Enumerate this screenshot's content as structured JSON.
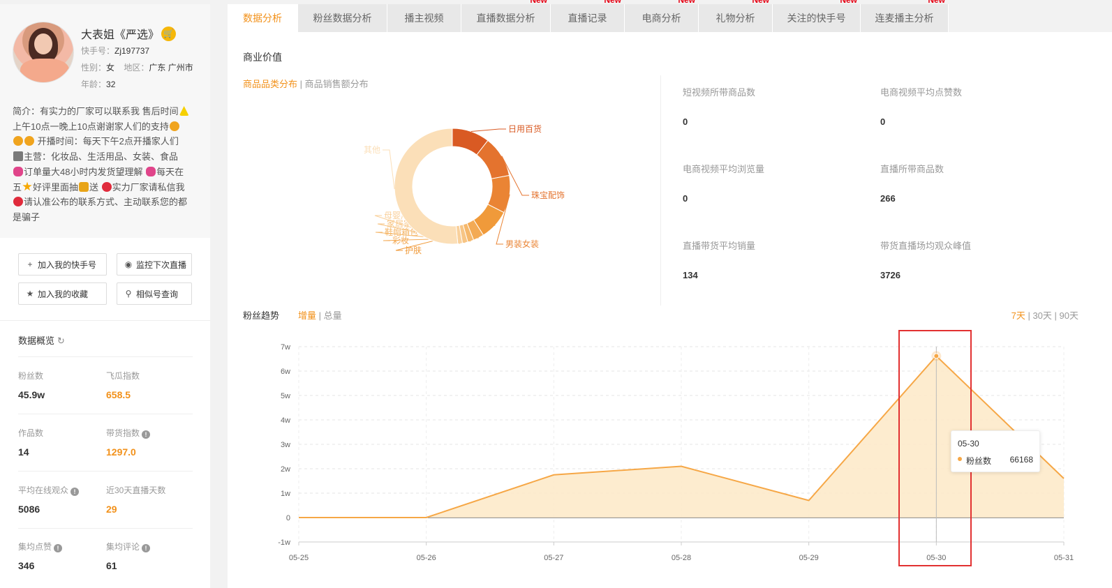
{
  "profile": {
    "name": "大表姐《严选》",
    "shop_icon": "shopping-cart-icon",
    "id_label": "快手号：",
    "id_value": "Zj197737",
    "gender_label": "性别：",
    "gender": "女",
    "region_label": "地区：",
    "region": "广东 广州市",
    "age_label": "年龄：",
    "age": "32",
    "bio_lines": [
      "简介：有实力的厂家可以联系我 售后时间",
      "上午10点一晚上10点谢谢家人们的支持",
      " 开播时间：每天下午2点开播家人们",
      "主营：化妆品、生活用品、女装、食品",
      "订单量大48小时内发货望理解 ",
      "每天在",
      "五",
      "好评里面抽",
      "送 ",
      "实力厂家请私信我",
      "请认准公布的联系方式、主动联系您的都",
      "是骗子"
    ]
  },
  "actions": {
    "add_kuaishou": "加入我的快手号",
    "monitor_live": "监控下次直播",
    "add_favorite": "加入我的收藏",
    "similar_search": "相似号查询"
  },
  "overview": {
    "title": "数据概览",
    "stats": [
      {
        "label": "粉丝数",
        "value": "45.9w",
        "highlight": false
      },
      {
        "label": "飞瓜指数",
        "value": "658.5",
        "highlight": true
      },
      {
        "label": "作品数",
        "value": "14",
        "highlight": false
      },
      {
        "label": "带货指数",
        "value": "1297.0",
        "highlight": true
      },
      {
        "label": "平均在线观众",
        "value": "5086",
        "highlight": false
      },
      {
        "label": "近30天直播天数",
        "value": "29",
        "highlight": true
      },
      {
        "label": "集均点赞",
        "value": "346",
        "highlight": false
      },
      {
        "label": "集均评论",
        "value": "61",
        "highlight": false
      }
    ]
  },
  "tabs": [
    {
      "label": "数据分析",
      "new": false
    },
    {
      "label": "粉丝数据分析",
      "new": false
    },
    {
      "label": "播主视频",
      "new": false
    },
    {
      "label": "直播数据分析",
      "new": true
    },
    {
      "label": "直播记录",
      "new": true
    },
    {
      "label": "电商分析",
      "new": true
    },
    {
      "label": "礼物分析",
      "new": true
    },
    {
      "label": "关注的快手号",
      "new": true
    },
    {
      "label": "连麦播主分析",
      "new": true
    }
  ],
  "new_badge": "New",
  "business": {
    "title": "商业价值",
    "subtab_active": "商品品类分布",
    "subtab_sep": " | ",
    "subtab_other": "商品销售额分布",
    "metrics": [
      {
        "label": "短视频所带商品数",
        "value": "0"
      },
      {
        "label": "电商视频平均点赞数",
        "value": "0"
      },
      {
        "label": "电商视频平均浏览量",
        "value": "0"
      },
      {
        "label": "直播所带商品数",
        "value": "266"
      },
      {
        "label": "直播带货平均销量",
        "value": "134"
      },
      {
        "label": "带货直播场均观众峰值",
        "value": "3726"
      }
    ]
  },
  "chart_data": [
    {
      "type": "pie",
      "style": "donut",
      "categories": [
        "日用百货",
        "珠宝配饰",
        "男装女装",
        "护肤",
        "彩妆",
        "鞋帽箱包",
        "家居家纺",
        "母婴用品",
        "其他"
      ],
      "values": [
        10.5,
        11.5,
        10.5,
        8.5,
        3,
        1.7,
        1.5,
        1.3,
        51.5
      ],
      "colors": [
        "#d95a23",
        "#e4732e",
        "#ea8434",
        "#f09a3a",
        "#f3aa55",
        "#f5b86c",
        "#f7c585",
        "#f9d09b",
        "#fbdfb8"
      ]
    },
    {
      "type": "area",
      "title": "粉丝趋势",
      "mode_active": "增量",
      "mode_sep": " | ",
      "mode_other": "总量",
      "range_options": [
        "7天",
        "30天",
        "90天"
      ],
      "range_active": "7天",
      "range_sep": " | ",
      "x": [
        "05-25",
        "05-26",
        "05-27",
        "05-28",
        "05-29",
        "05-30",
        "05-31"
      ],
      "series": [
        {
          "name": "粉丝数",
          "values": [
            0,
            0,
            17500,
            21000,
            7000,
            66168,
            16000
          ]
        }
      ],
      "yticks": [
        "-1w",
        "0",
        "1w",
        "2w",
        "3w",
        "4w",
        "5w",
        "6w",
        "7w"
      ],
      "ylim": [
        -10000,
        70000
      ],
      "grid": true,
      "color": "#f6a746",
      "fill": "#fde9c7",
      "tooltip": {
        "date": "05-30",
        "series": "粉丝数",
        "value": "66168"
      }
    }
  ]
}
